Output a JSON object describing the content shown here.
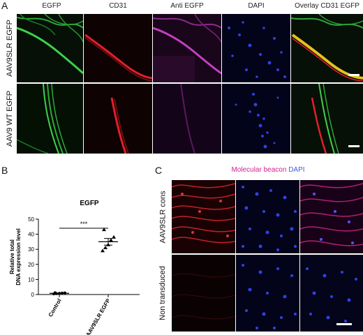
{
  "panel_a": {
    "letter": "A",
    "columns": [
      "EGFP",
      "CD31",
      "Anti EGFP",
      "DAPI",
      "Overlay CD31 EGFP"
    ],
    "rows": [
      "AAV9SLR EGFP",
      "AAV9 WT EGFP"
    ]
  },
  "panel_b": {
    "letter": "B"
  },
  "panel_c": {
    "letter": "C",
    "header_part1": "Molecular beacon",
    "header_part2": "DAPI",
    "rows": [
      "AAV9SLR cons",
      "Non transduced"
    ]
  },
  "colors": {
    "egfp": "#2fbf3a",
    "cd31": "#e0202a",
    "anti_egfp": "#b02fb0",
    "dapi": "#2f3fe0",
    "overlay_yellow": "#e8c020",
    "beacon_magenta": "#d0208f",
    "dapi_label_blue": "#3e5fd0"
  },
  "chart_data": {
    "type": "scatter",
    "title": "EGFP",
    "ylabel": "Relative total DNA expression level",
    "xlabel": "",
    "categories": [
      "Control",
      "AAV9SLR EGFP"
    ],
    "ylim": [
      0,
      50
    ],
    "yticks": [
      "0",
      "10",
      "20",
      "30",
      "40",
      "50"
    ],
    "series": [
      {
        "category": "Control",
        "marker": "circle",
        "values": [
          0.4,
          0.6,
          0.8,
          1.0,
          1.1,
          1.2
        ],
        "mean": 0.8
      },
      {
        "category": "AAV9SLR EGFP",
        "marker": "triangle",
        "values": [
          29,
          31,
          33,
          36,
          38,
          43
        ],
        "mean": 35,
        "sem": 2.2
      }
    ],
    "significance": "***"
  }
}
